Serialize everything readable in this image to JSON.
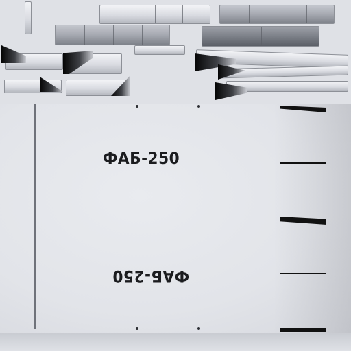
{
  "texture": {
    "stencil_upright": "ФАБ-250",
    "stencil_rotated": "ФАБ-250"
  },
  "colors": {
    "background": "#dfe1e6",
    "stencil_ink": "#1b1c1f",
    "fin_marks": "#111111"
  }
}
